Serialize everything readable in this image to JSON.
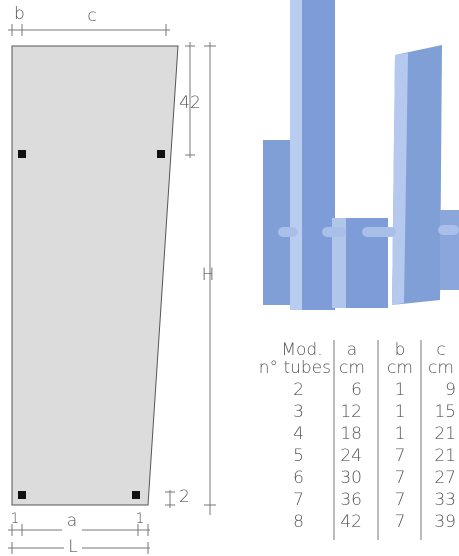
{
  "dimensions": {
    "b": "b",
    "c": "c",
    "top_offset": 42,
    "height": "H",
    "bottom_offset": 2,
    "left_margin": 1,
    "a": "a",
    "right_margin": 1,
    "width": "L"
  },
  "table": {
    "header": [
      [
        "Mod.",
        "n° tubes"
      ],
      [
        "a",
        "cm"
      ],
      [
        "b",
        "cm"
      ],
      [
        "c",
        "cm"
      ]
    ],
    "rows": [
      [
        2,
        6,
        1,
        9
      ],
      [
        3,
        12,
        1,
        15
      ],
      [
        4,
        18,
        1,
        21
      ],
      [
        5,
        24,
        7,
        21
      ],
      [
        6,
        30,
        7,
        27
      ],
      [
        7,
        36,
        7,
        33
      ],
      [
        8,
        42,
        7,
        39
      ]
    ]
  }
}
